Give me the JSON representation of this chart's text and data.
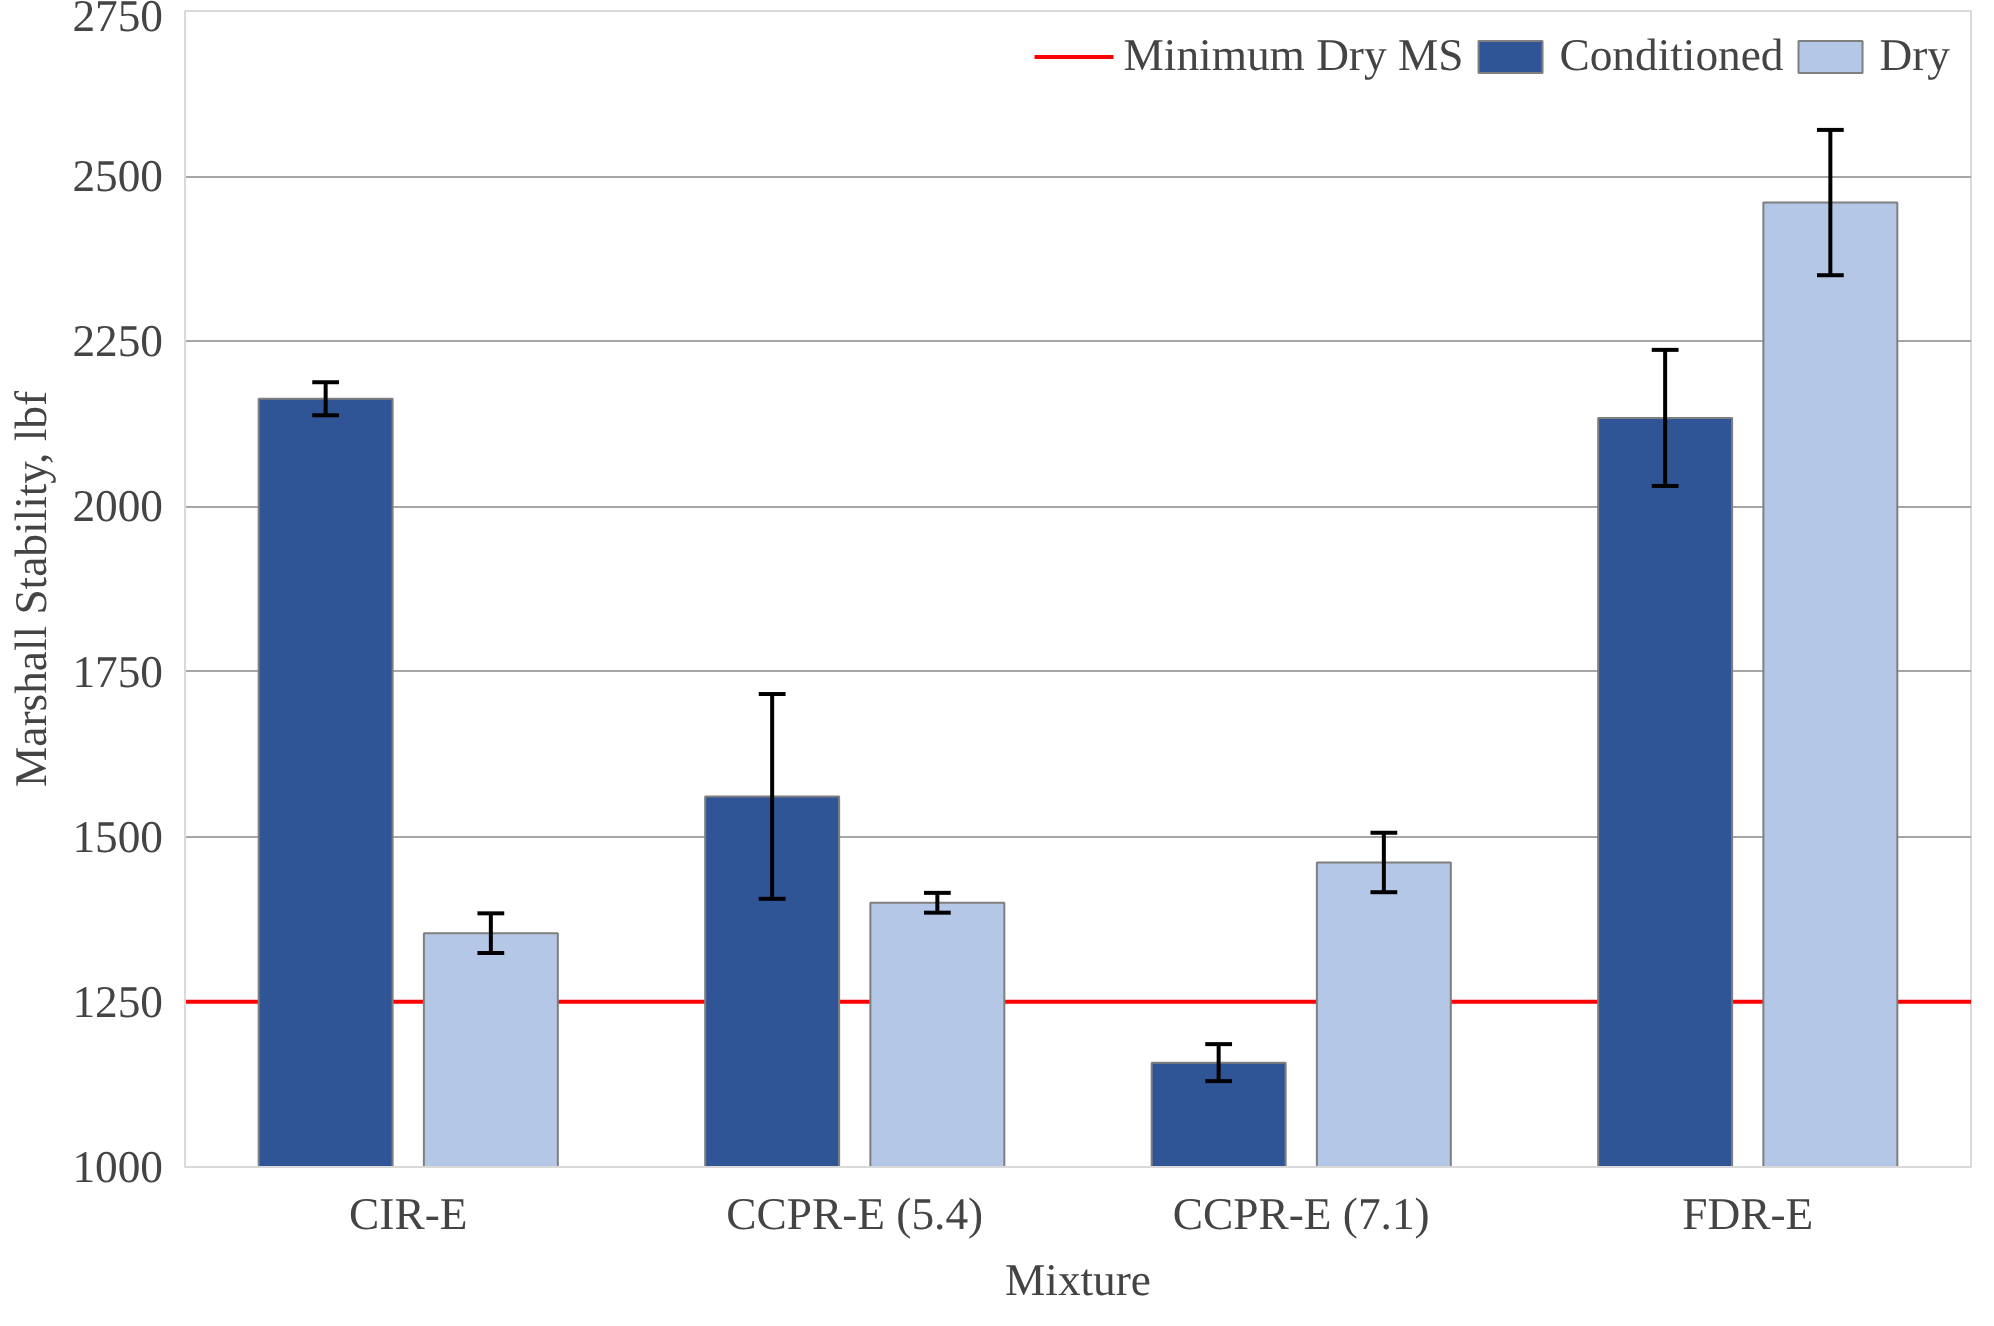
{
  "chart_data": {
    "type": "bar",
    "xlabel": "Mixture",
    "ylabel": "Marshall Stability, lbf",
    "categories": [
      "CIR-E",
      "CCPR-E (5.4)",
      "CCPR-E (7.1)",
      "FDR-E"
    ],
    "series": [
      {
        "name": "Conditioned",
        "color": "#2f5597",
        "values": [
          2163,
          1561,
          1158,
          2134
        ],
        "errors": [
          25,
          155,
          28,
          103
        ]
      },
      {
        "name": "Dry",
        "color": "#b4c7e7",
        "values": [
          1354,
          1400,
          1461,
          2460
        ],
        "errors": [
          30,
          15,
          45,
          110
        ]
      }
    ],
    "ylim": [
      1000,
      2750
    ],
    "yticks": [
      1000,
      1250,
      1500,
      1750,
      2000,
      2250,
      2500,
      2750
    ],
    "ref_lines": [
      {
        "axis": "y",
        "value": 1250,
        "label": "Minimum Dry MS",
        "color": "#ff0000"
      }
    ],
    "grid": "y",
    "legend": "top right"
  }
}
